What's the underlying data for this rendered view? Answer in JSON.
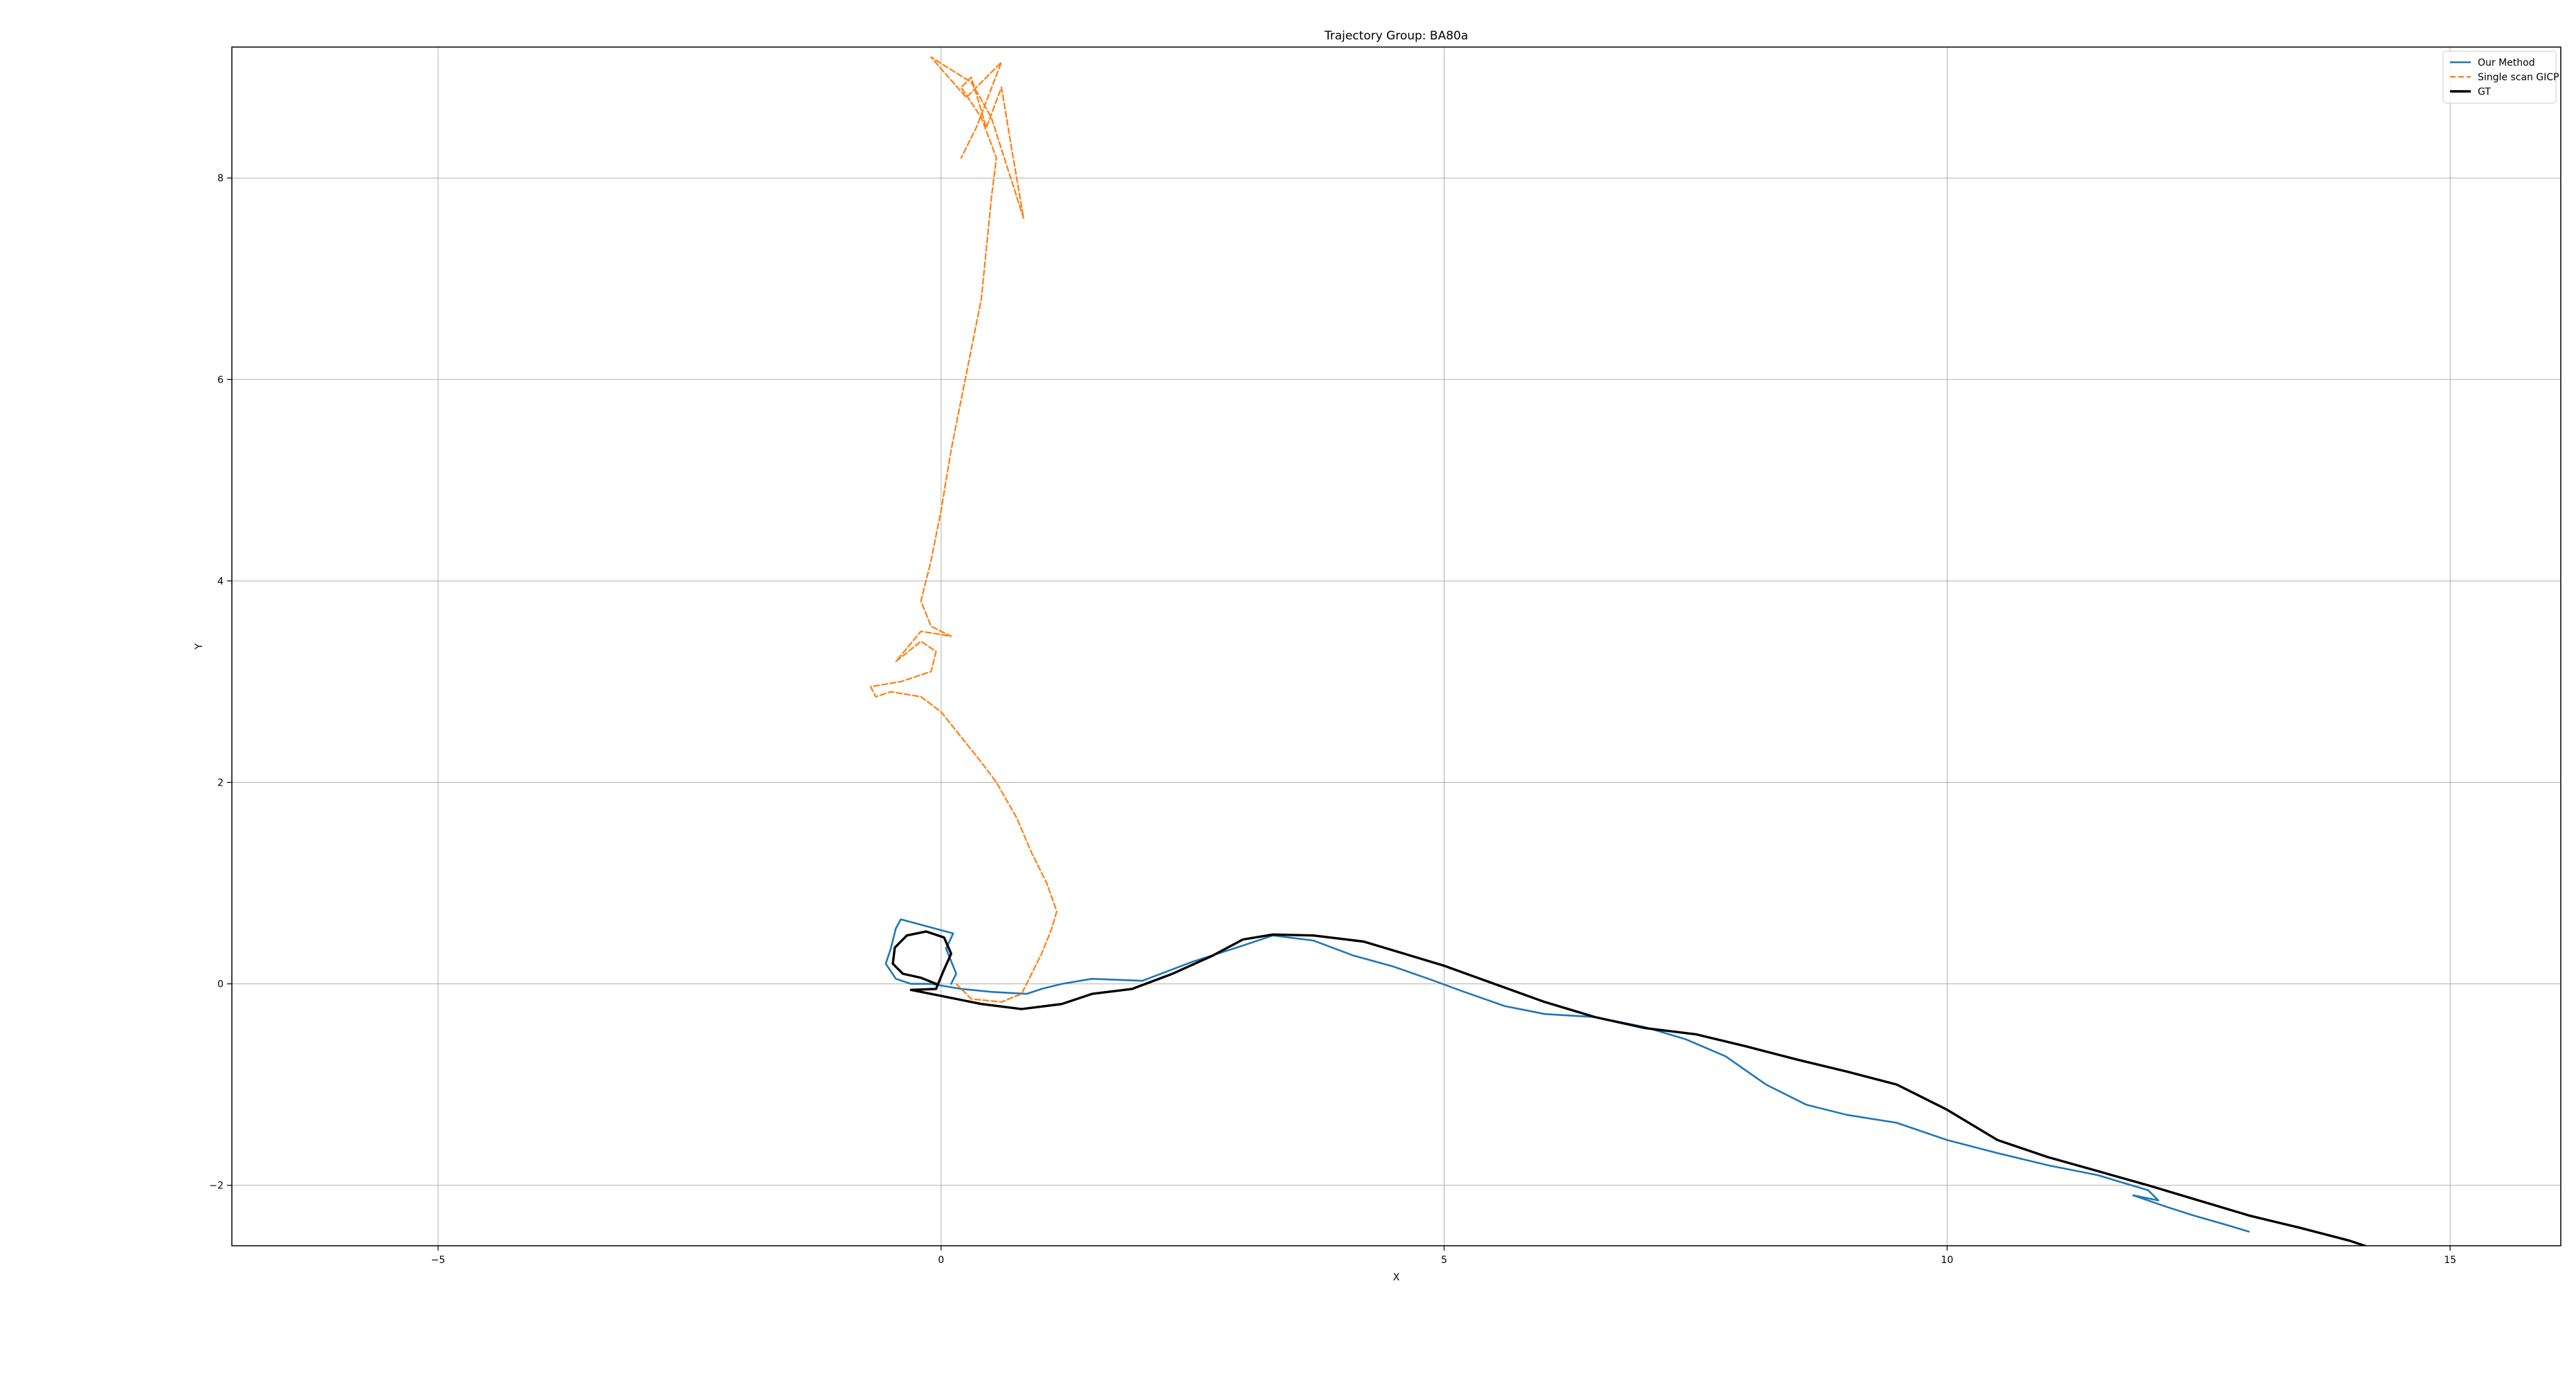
{
  "chart_data": {
    "type": "line",
    "title": "Trajectory Group: BA80a",
    "xlabel": "X",
    "ylabel": "Y",
    "xlim": [
      -7.05,
      16.1
    ],
    "ylim": [
      -2.6,
      9.3
    ],
    "xticks": [
      -5,
      0,
      5,
      10,
      15
    ],
    "yticks": [
      -2,
      0,
      2,
      4,
      6,
      8
    ],
    "xtick_labels": [
      "−5",
      "0",
      "5",
      "10",
      "15"
    ],
    "ytick_labels": [
      "−2",
      "0",
      "2",
      "4",
      "6",
      "8"
    ],
    "grid": true,
    "legend_position": "top-right",
    "series": [
      {
        "name": "Our Method",
        "color": "#1f77b4",
        "style": "solid",
        "points": [
          [
            0.1,
            0.0
          ],
          [
            0.15,
            0.1
          ],
          [
            0.05,
            0.35
          ],
          [
            0.12,
            0.5
          ],
          [
            -0.1,
            0.56
          ],
          [
            -0.4,
            0.64
          ],
          [
            -0.45,
            0.55
          ],
          [
            -0.5,
            0.35
          ],
          [
            -0.55,
            0.2
          ],
          [
            -0.45,
            0.05
          ],
          [
            -0.3,
            0.0
          ],
          [
            -0.1,
            0.0
          ],
          [
            0.2,
            -0.05
          ],
          [
            0.5,
            -0.08
          ],
          [
            0.85,
            -0.1
          ],
          [
            1.0,
            -0.05
          ],
          [
            1.2,
            0.0
          ],
          [
            1.5,
            0.05
          ],
          [
            2.0,
            0.03
          ],
          [
            2.5,
            0.22
          ],
          [
            3.0,
            0.38
          ],
          [
            3.3,
            0.48
          ],
          [
            3.7,
            0.43
          ],
          [
            4.1,
            0.28
          ],
          [
            4.5,
            0.17
          ],
          [
            4.9,
            0.03
          ],
          [
            5.2,
            -0.08
          ],
          [
            5.6,
            -0.22
          ],
          [
            6.0,
            -0.3
          ],
          [
            6.5,
            -0.33
          ],
          [
            7.0,
            -0.43
          ],
          [
            7.4,
            -0.55
          ],
          [
            7.8,
            -0.72
          ],
          [
            8.2,
            -1.0
          ],
          [
            8.6,
            -1.2
          ],
          [
            9.0,
            -1.3
          ],
          [
            9.5,
            -1.38
          ],
          [
            10.0,
            -1.55
          ],
          [
            10.5,
            -1.68
          ],
          [
            11.0,
            -1.8
          ],
          [
            11.5,
            -1.9
          ],
          [
            12.0,
            -2.05
          ],
          [
            12.1,
            -2.15
          ],
          [
            11.85,
            -2.1
          ],
          [
            12.2,
            -2.22
          ],
          [
            12.45,
            -2.3
          ],
          [
            12.8,
            -2.4
          ],
          [
            13.0,
            -2.46
          ]
        ]
      },
      {
        "name": "Single scan GICP",
        "color": "#ff7f0e",
        "style": "dashed",
        "points": [
          [
            0.15,
            0.0
          ],
          [
            0.3,
            -0.15
          ],
          [
            0.6,
            -0.18
          ],
          [
            0.8,
            -0.1
          ],
          [
            0.9,
            0.1
          ],
          [
            1.0,
            0.3
          ],
          [
            1.1,
            0.55
          ],
          [
            1.15,
            0.72
          ],
          [
            1.05,
            1.0
          ],
          [
            0.9,
            1.3
          ],
          [
            0.75,
            1.65
          ],
          [
            0.55,
            2.0
          ],
          [
            0.4,
            2.2
          ],
          [
            0.2,
            2.45
          ],
          [
            0.0,
            2.7
          ],
          [
            -0.2,
            2.85
          ],
          [
            -0.5,
            2.9
          ],
          [
            -0.65,
            2.85
          ],
          [
            -0.7,
            2.95
          ],
          [
            -0.4,
            3.0
          ],
          [
            -0.1,
            3.1
          ],
          [
            -0.05,
            3.3
          ],
          [
            -0.2,
            3.4
          ],
          [
            -0.45,
            3.2
          ],
          [
            -0.2,
            3.5
          ],
          [
            0.1,
            3.45
          ],
          [
            -0.1,
            3.55
          ],
          [
            -0.2,
            3.8
          ],
          [
            -0.1,
            4.2
          ],
          [
            0.0,
            4.7
          ],
          [
            0.1,
            5.3
          ],
          [
            0.2,
            5.8
          ],
          [
            0.3,
            6.3
          ],
          [
            0.4,
            6.8
          ],
          [
            0.45,
            7.3
          ],
          [
            0.5,
            7.8
          ],
          [
            0.55,
            8.2
          ],
          [
            0.4,
            8.6
          ],
          [
            0.2,
            8.9
          ],
          [
            0.3,
            9.0
          ],
          [
            0.45,
            8.5
          ],
          [
            0.6,
            8.9
          ],
          [
            0.7,
            8.3
          ],
          [
            0.82,
            7.6
          ],
          [
            0.5,
            8.6
          ],
          [
            0.3,
            8.95
          ],
          [
            -0.1,
            9.2
          ],
          [
            0.25,
            8.8
          ],
          [
            0.6,
            9.15
          ],
          [
            0.35,
            8.5
          ],
          [
            0.2,
            8.2
          ]
        ]
      },
      {
        "name": "GT",
        "color": "#000000",
        "style": "solid",
        "points": [
          [
            -0.05,
            0.0
          ],
          [
            -0.2,
            0.06
          ],
          [
            -0.38,
            0.1
          ],
          [
            -0.48,
            0.2
          ],
          [
            -0.46,
            0.36
          ],
          [
            -0.34,
            0.48
          ],
          [
            -0.15,
            0.52
          ],
          [
            0.03,
            0.46
          ],
          [
            0.1,
            0.3
          ],
          [
            0.02,
            0.12
          ],
          [
            -0.05,
            -0.05
          ],
          [
            -0.3,
            -0.06
          ],
          [
            0.0,
            -0.12
          ],
          [
            0.4,
            -0.2
          ],
          [
            0.8,
            -0.25
          ],
          [
            1.2,
            -0.2
          ],
          [
            1.5,
            -0.1
          ],
          [
            1.9,
            -0.05
          ],
          [
            2.3,
            0.1
          ],
          [
            2.7,
            0.28
          ],
          [
            3.0,
            0.44
          ],
          [
            3.3,
            0.49
          ],
          [
            3.7,
            0.48
          ],
          [
            4.2,
            0.42
          ],
          [
            4.6,
            0.3
          ],
          [
            5.0,
            0.18
          ],
          [
            5.5,
            0.0
          ],
          [
            6.0,
            -0.18
          ],
          [
            6.5,
            -0.33
          ],
          [
            7.0,
            -0.44
          ],
          [
            7.5,
            -0.5
          ],
          [
            8.0,
            -0.62
          ],
          [
            8.5,
            -0.75
          ],
          [
            9.0,
            -0.87
          ],
          [
            9.5,
            -1.0
          ],
          [
            10.0,
            -1.25
          ],
          [
            10.5,
            -1.55
          ],
          [
            11.0,
            -1.72
          ],
          [
            11.5,
            -1.86
          ],
          [
            12.0,
            -2.0
          ],
          [
            12.5,
            -2.15
          ],
          [
            13.0,
            -2.3
          ],
          [
            13.5,
            -2.42
          ],
          [
            14.0,
            -2.55
          ],
          [
            14.3,
            -2.65
          ]
        ]
      }
    ]
  }
}
